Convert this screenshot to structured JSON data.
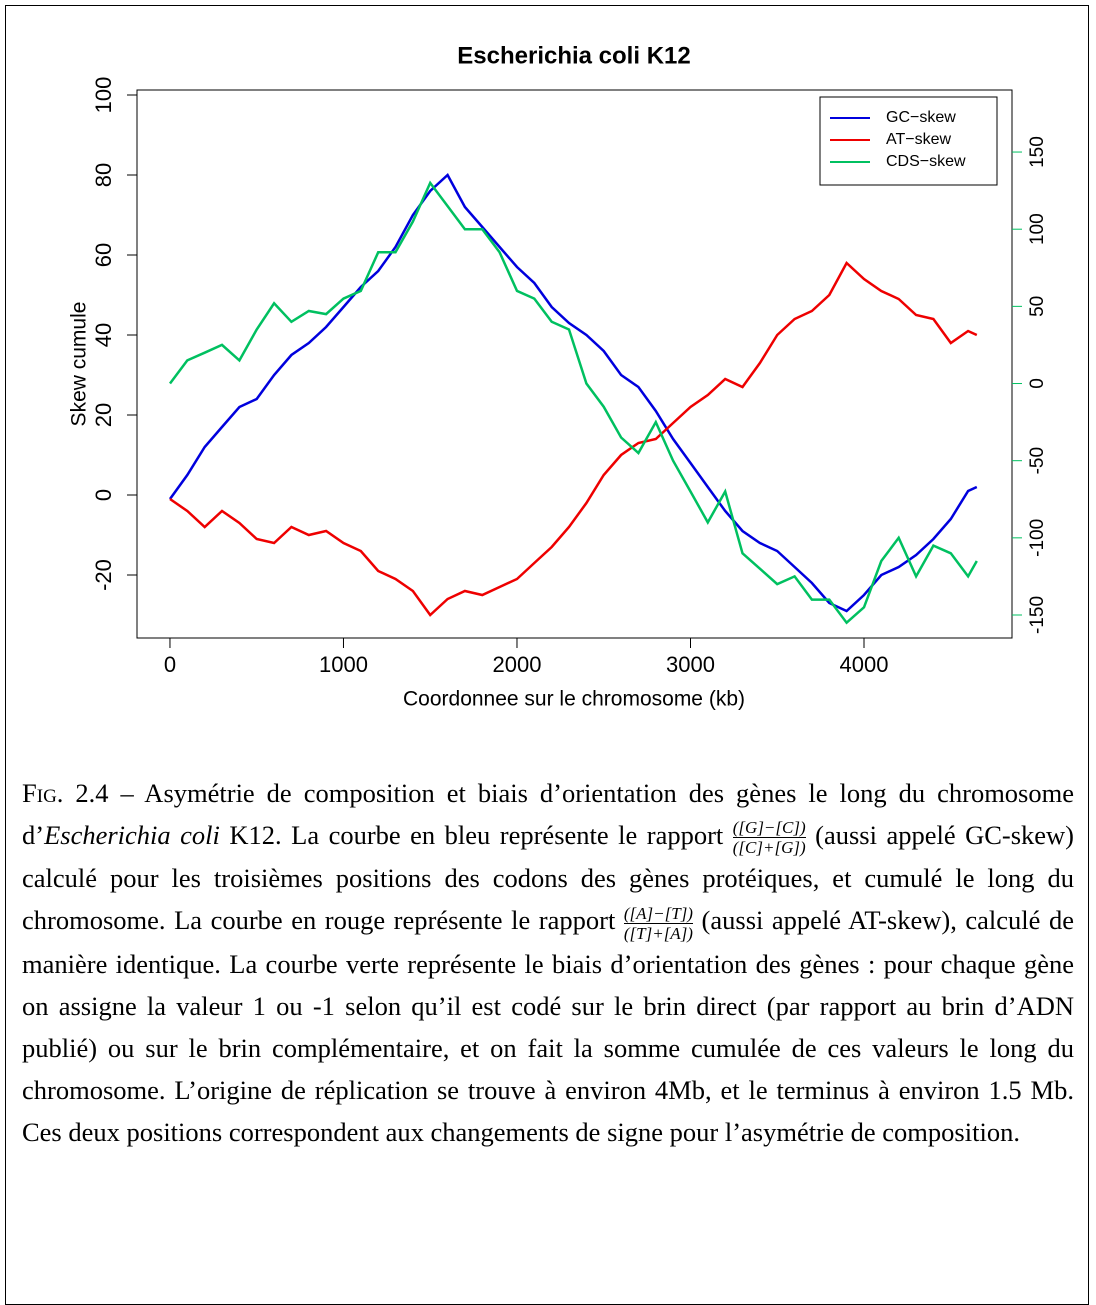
{
  "chart_data": {
    "type": "line",
    "title": "Escherichia coli K12",
    "xlabel": "Coordonnee sur le chromosome (kb)",
    "ylabel": "Skew cumule",
    "x": [
      0,
      100,
      200,
      300,
      400,
      500,
      600,
      700,
      800,
      900,
      1000,
      1100,
      1200,
      1300,
      1400,
      1500,
      1600,
      1700,
      1800,
      1900,
      2000,
      2100,
      2200,
      2300,
      2400,
      2500,
      2600,
      2700,
      2800,
      2900,
      3000,
      3100,
      3200,
      3300,
      3400,
      3500,
      3600,
      3700,
      3800,
      3900,
      4000,
      4100,
      4200,
      4300,
      4400,
      4500,
      4600,
      4650
    ],
    "series": [
      {
        "name": "GC−skew",
        "color": "#0000dd",
        "values": [
          -1,
          5,
          12,
          17,
          22,
          24,
          30,
          35,
          38,
          42,
          47,
          52,
          56,
          62,
          70,
          76,
          80,
          72,
          67,
          62,
          57,
          53,
          47,
          43,
          40,
          36,
          30,
          27,
          21,
          14,
          8,
          2,
          -4,
          -9,
          -12,
          -14,
          -18,
          -22,
          -27,
          -29,
          -25,
          -20,
          -18,
          -15,
          -11,
          -6,
          1,
          2
        ]
      },
      {
        "name": "AT−skew",
        "color": "#ee0000",
        "values": [
          -1,
          -4,
          -8,
          -4,
          -7,
          -11,
          -12,
          -8,
          -10,
          -9,
          -12,
          -14,
          -19,
          -21,
          -24,
          -30,
          -26,
          -24,
          -25,
          -23,
          -21,
          -17,
          -13,
          -8,
          -2,
          5,
          10,
          13,
          14,
          18,
          22,
          25,
          29,
          27,
          33,
          40,
          44,
          46,
          50,
          58,
          54,
          51,
          49,
          45,
          44,
          38,
          41,
          40
        ]
      },
      {
        "name": "CDS−skew",
        "color": "#00c060",
        "axis": "y2",
        "values": [
          0,
          15,
          20,
          25,
          15,
          35,
          52,
          40,
          47,
          45,
          55,
          60,
          85,
          85,
          105,
          130,
          115,
          100,
          100,
          85,
          60,
          55,
          40,
          35,
          0,
          -15,
          -35,
          -45,
          -25,
          -50,
          -70,
          -90,
          -70,
          -110,
          -120,
          -130,
          -125,
          -140,
          -140,
          -155,
          -145,
          -115,
          -100,
          -125,
          -105,
          -110,
          -125,
          -115
        ]
      }
    ],
    "xlim": [
      -190,
      4853
    ],
    "xticks": [
      0,
      1000,
      2000,
      3000,
      4000
    ],
    "ylim": [
      -35.75,
      101.25
    ],
    "yticks": [
      -20,
      0,
      20,
      40,
      60,
      80,
      100
    ],
    "y2lim": [
      -164.9,
      190.2
    ],
    "y2ticks": [
      -150,
      -100,
      -50,
      0,
      50,
      100,
      150
    ],
    "y2color": "#00c060",
    "legend": "top-right"
  },
  "caption": {
    "label": "Fig. 2.4",
    "text1": " – Asymétrie de composition et biais d’orientation des gènes le long du chromosome d’",
    "species": "Escherichia coli",
    "text2": " K12. La courbe en bleu représente le rapport ",
    "frac1": {
      "num": "([G]−[C])",
      "den": "([C]+[G])"
    },
    "text3": " (aussi appelé GC-skew) calculé pour les troisièmes positions des codons des gènes protéiques, et cumulé le long du chromosome. La courbe en rouge représente le rapport ",
    "frac2": {
      "num": "([A]−[T])",
      "den": "([T]+[A])"
    },
    "text4": " (aussi appelé AT-skew), calculé de manière identique. La courbe verte représente le biais d’orientation des gènes : pour chaque gène on assigne la valeur 1 ou -1 selon qu’il est codé sur le brin direct (par rapport au brin d’ADN publié) ou sur le brin complémentaire, et on fait la somme cumulée de ces valeurs le long du chromosome. L’origine de réplication se trouve à environ 4Mb, et le terminus à environ 1.5 Mb. Ces deux positions correspondent aux changements de signe pour l’asymétrie de composition."
  }
}
